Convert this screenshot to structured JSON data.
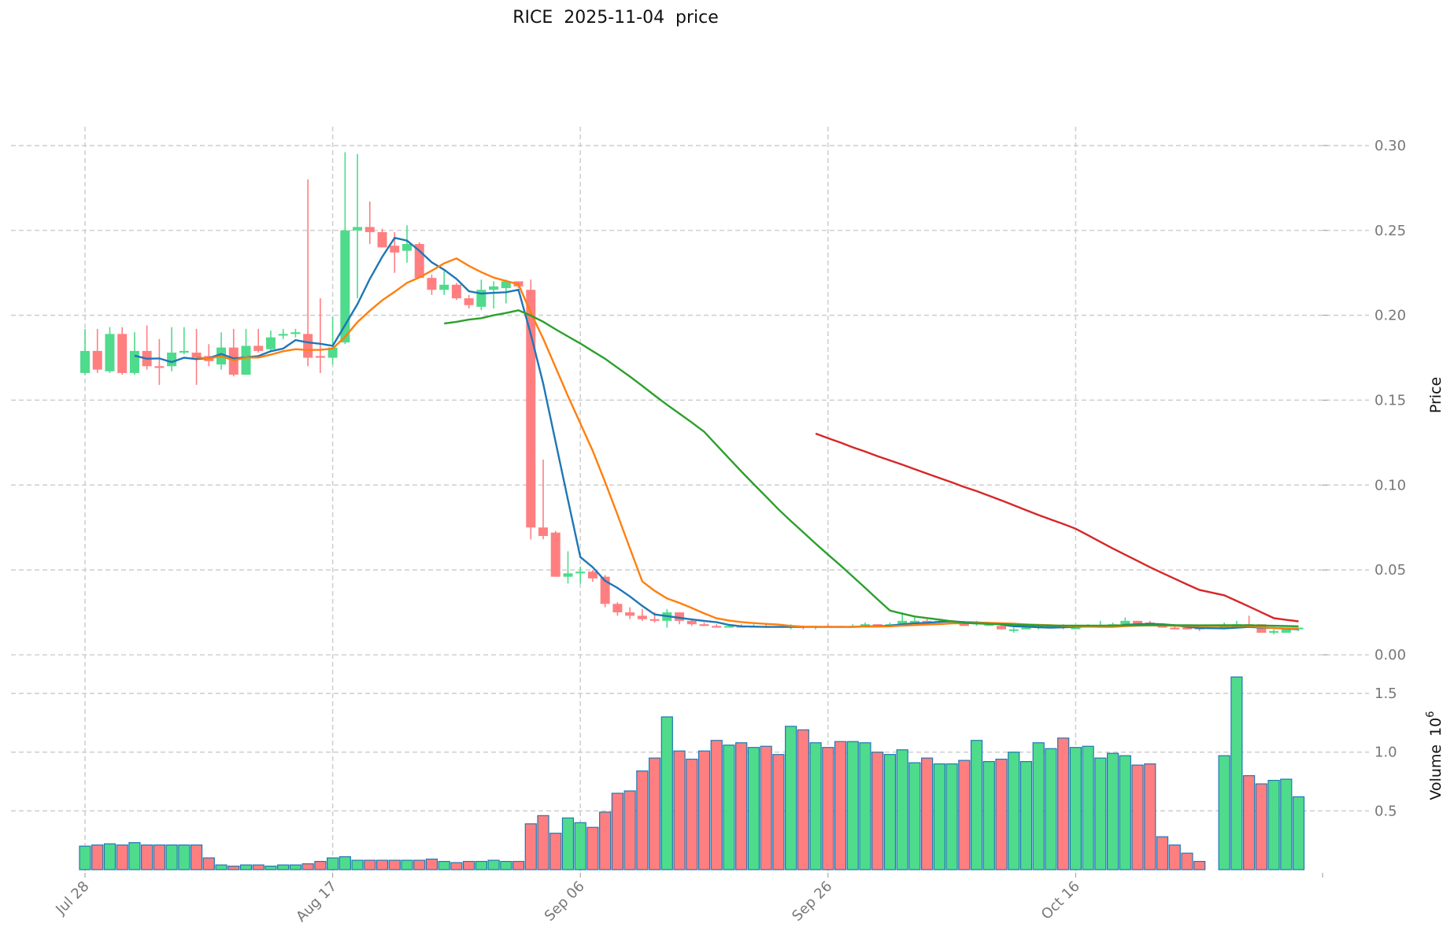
{
  "chart_data": {
    "type": "candlestick",
    "title": "RICE  2025-11-04  price",
    "ylabel_price": "Price",
    "ylabel_volume": "Volume",
    "ylabel_volume_exp": "10",
    "ylabel_volume_exp_power": "6",
    "price_ylim": [
      0,
      0.31
    ],
    "volume_ylim": [
      0,
      1.7
    ],
    "price_ticks": [
      "0.00",
      "0.05",
      "0.10",
      "0.15",
      "0.20",
      "0.25",
      "0.30"
    ],
    "volume_ticks": [
      "0.5",
      "1.0",
      "1.5"
    ],
    "x_ticks": [
      {
        "day": 0,
        "label": "Jul 28"
      },
      {
        "day": 20,
        "label": "Aug 17"
      },
      {
        "day": 40,
        "label": "Sep 06"
      },
      {
        "day": 60,
        "label": "Sep 26"
      },
      {
        "day": 80,
        "label": "Oct 16"
      }
    ],
    "grid": true,
    "colors": {
      "up": "#4fdb8c",
      "down": "#ff7f81",
      "vol_edge": "#1f77b4",
      "ma5": "#1f77b4",
      "ma10": "#ff7f0e",
      "ma30": "#2ca02c",
      "ma60": "#d62728",
      "grid": "#d0d0d0"
    },
    "moving_averages": [
      5,
      10,
      30,
      60
    ],
    "ohlc": [
      [
        0.166,
        0.192,
        0.165,
        0.179
      ],
      [
        0.179,
        0.192,
        0.166,
        0.168
      ],
      [
        0.167,
        0.193,
        0.166,
        0.189
      ],
      [
        0.189,
        0.193,
        0.165,
        0.166
      ],
      [
        0.166,
        0.19,
        0.165,
        0.179
      ],
      [
        0.179,
        0.194,
        0.168,
        0.17
      ],
      [
        0.17,
        0.186,
        0.159,
        0.169
      ],
      [
        0.17,
        0.193,
        0.167,
        0.178
      ],
      [
        0.178,
        0.193,
        0.177,
        0.179
      ],
      [
        0.178,
        0.192,
        0.159,
        0.175
      ],
      [
        0.176,
        0.183,
        0.17,
        0.173
      ],
      [
        0.171,
        0.19,
        0.168,
        0.181
      ],
      [
        0.181,
        0.192,
        0.164,
        0.165
      ],
      [
        0.165,
        0.192,
        0.165,
        0.182
      ],
      [
        0.182,
        0.192,
        0.178,
        0.179
      ],
      [
        0.18,
        0.191,
        0.179,
        0.187
      ],
      [
        0.188,
        0.192,
        0.186,
        0.189
      ],
      [
        0.189,
        0.192,
        0.187,
        0.19
      ],
      [
        0.189,
        0.28,
        0.17,
        0.175
      ],
      [
        0.176,
        0.21,
        0.166,
        0.175
      ],
      [
        0.175,
        0.199,
        0.171,
        0.181
      ],
      [
        0.184,
        0.296,
        0.183,
        0.25
      ],
      [
        0.25,
        0.295,
        0.21,
        0.252
      ],
      [
        0.252,
        0.267,
        0.242,
        0.249
      ],
      [
        0.249,
        0.251,
        0.24,
        0.24
      ],
      [
        0.241,
        0.249,
        0.225,
        0.237
      ],
      [
        0.238,
        0.253,
        0.231,
        0.242
      ],
      [
        0.242,
        0.243,
        0.222,
        0.222
      ],
      [
        0.222,
        0.224,
        0.212,
        0.215
      ],
      [
        0.215,
        0.226,
        0.212,
        0.218
      ],
      [
        0.218,
        0.219,
        0.209,
        0.21
      ],
      [
        0.21,
        0.212,
        0.204,
        0.206
      ],
      [
        0.205,
        0.221,
        0.203,
        0.215
      ],
      [
        0.215,
        0.22,
        0.204,
        0.217
      ],
      [
        0.216,
        0.221,
        0.207,
        0.22
      ],
      [
        0.22,
        0.22,
        0.216,
        0.217
      ],
      [
        0.215,
        0.221,
        0.068,
        0.075
      ],
      [
        0.075,
        0.115,
        0.068,
        0.07
      ],
      [
        0.072,
        0.073,
        0.046,
        0.046
      ],
      [
        0.046,
        0.061,
        0.042,
        0.048
      ],
      [
        0.048,
        0.052,
        0.042,
        0.049
      ],
      [
        0.049,
        0.05,
        0.043,
        0.045
      ],
      [
        0.046,
        0.047,
        0.028,
        0.03
      ],
      [
        0.03,
        0.031,
        0.023,
        0.025
      ],
      [
        0.025,
        0.028,
        0.021,
        0.023
      ],
      [
        0.023,
        0.027,
        0.02,
        0.021
      ],
      [
        0.021,
        0.025,
        0.019,
        0.02
      ],
      [
        0.02,
        0.027,
        0.016,
        0.025
      ],
      [
        0.025,
        0.025,
        0.018,
        0.02
      ],
      [
        0.02,
        0.021,
        0.017,
        0.018
      ],
      [
        0.018,
        0.019,
        0.017,
        0.017
      ],
      [
        0.017,
        0.018,
        0.016,
        0.016
      ],
      [
        0.016,
        0.018,
        0.016,
        0.017
      ],
      [
        0.017,
        0.018,
        0.016,
        0.016
      ],
      [
        0.016,
        0.018,
        0.016,
        0.017
      ],
      [
        0.017,
        0.018,
        0.016,
        0.016
      ],
      [
        0.017,
        0.017,
        0.016,
        0.016
      ],
      [
        0.016,
        0.018,
        0.015,
        0.017
      ],
      [
        0.017,
        0.017,
        0.015,
        0.016
      ],
      [
        0.016,
        0.017,
        0.015,
        0.017
      ],
      [
        0.017,
        0.018,
        0.016,
        0.016
      ],
      [
        0.017,
        0.017,
        0.016,
        0.016
      ],
      [
        0.016,
        0.018,
        0.016,
        0.017
      ],
      [
        0.017,
        0.019,
        0.017,
        0.018
      ],
      [
        0.018,
        0.018,
        0.017,
        0.017
      ],
      [
        0.017,
        0.019,
        0.017,
        0.018
      ],
      [
        0.018,
        0.025,
        0.017,
        0.02
      ],
      [
        0.019,
        0.022,
        0.018,
        0.02
      ],
      [
        0.02,
        0.021,
        0.019,
        0.019
      ],
      [
        0.019,
        0.021,
        0.018,
        0.02
      ],
      [
        0.019,
        0.02,
        0.018,
        0.02
      ],
      [
        0.019,
        0.02,
        0.017,
        0.017
      ],
      [
        0.018,
        0.02,
        0.017,
        0.019
      ],
      [
        0.018,
        0.019,
        0.017,
        0.018
      ],
      [
        0.017,
        0.018,
        0.015,
        0.015
      ],
      [
        0.014,
        0.016,
        0.013,
        0.015
      ],
      [
        0.015,
        0.017,
        0.015,
        0.016
      ],
      [
        0.016,
        0.018,
        0.015,
        0.017
      ],
      [
        0.016,
        0.018,
        0.016,
        0.017
      ],
      [
        0.017,
        0.018,
        0.015,
        0.016
      ],
      [
        0.016,
        0.017,
        0.016,
        0.016
      ],
      [
        0.016,
        0.018,
        0.016,
        0.017
      ],
      [
        0.017,
        0.02,
        0.016,
        0.017
      ],
      [
        0.017,
        0.019,
        0.016,
        0.018
      ],
      [
        0.018,
        0.022,
        0.017,
        0.02
      ],
      [
        0.02,
        0.02,
        0.018,
        0.018
      ],
      [
        0.019,
        0.02,
        0.018,
        0.018
      ],
      [
        0.017,
        0.017,
        0.016,
        0.016
      ],
      [
        0.016,
        0.017,
        0.015,
        0.015
      ],
      [
        0.016,
        0.016,
        0.015,
        0.015
      ],
      [
        0.016,
        0.016,
        0.014,
        0.015
      ],
      null,
      [
        0.016,
        0.019,
        0.015,
        0.017
      ],
      [
        0.016,
        0.02,
        0.016,
        0.018
      ],
      [
        0.018,
        0.023,
        0.017,
        0.017
      ],
      [
        0.018,
        0.018,
        0.013,
        0.013
      ],
      [
        0.013,
        0.015,
        0.012,
        0.014
      ],
      [
        0.013,
        0.016,
        0.013,
        0.015
      ],
      [
        0.015,
        0.016,
        0.014,
        0.016
      ]
    ],
    "volume": [
      0.2,
      0.21,
      0.22,
      0.21,
      0.23,
      0.21,
      0.21,
      0.21,
      0.21,
      0.21,
      0.1,
      0.04,
      0.03,
      0.04,
      0.04,
      0.03,
      0.04,
      0.04,
      0.05,
      0.07,
      0.1,
      0.11,
      0.08,
      0.08,
      0.08,
      0.08,
      0.08,
      0.08,
      0.09,
      0.07,
      0.06,
      0.07,
      0.07,
      0.08,
      0.07,
      0.07,
      0.39,
      0.46,
      0.31,
      0.44,
      0.4,
      0.36,
      0.49,
      0.65,
      0.67,
      0.84,
      0.95,
      1.3,
      1.01,
      0.94,
      1.01,
      1.1,
      1.06,
      1.08,
      1.04,
      1.05,
      0.98,
      1.22,
      1.19,
      1.08,
      1.04,
      1.09,
      1.09,
      1.08,
      1.0,
      0.98,
      1.02,
      0.91,
      0.95,
      0.9,
      0.9,
      0.93,
      1.1,
      0.92,
      0.94,
      1.0,
      0.92,
      1.08,
      1.03,
      1.12,
      1.04,
      1.05,
      0.95,
      0.99,
      0.97,
      0.89,
      0.9,
      0.28,
      0.21,
      0.14,
      0.07,
      0,
      0.97,
      1.64,
      0.8,
      0.73,
      0.76,
      0.77,
      0.62
    ]
  }
}
